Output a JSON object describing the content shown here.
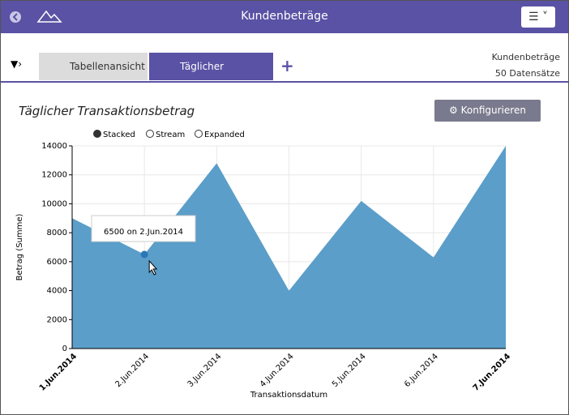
{
  "header": {
    "title": "Kundenbeträge"
  },
  "tabs": [
    "Tabellenansicht",
    "Täglicher Transakt..."
  ],
  "info": {
    "source": "Kundenbeträge",
    "records": "50 Datensätze"
  },
  "panel": {
    "title": "Täglicher Transaktionsbetrag",
    "button": "Konfigurieren",
    "modes": [
      "Stacked",
      "Stream",
      "Expanded"
    ]
  },
  "chart_data": {
    "type": "area",
    "categories": [
      "1.Jun.2014",
      "2.Jun.2014",
      "3.Jun.2014",
      "4.Jun.2014",
      "5.Jun.2014",
      "6.Jun.2014",
      "7.Jun.2014"
    ],
    "values": [
      9000,
      6500,
      12800,
      4000,
      10200,
      6300,
      14000
    ],
    "color": "#5b9ec9",
    "ylim": [
      0,
      14000
    ],
    "yticks": [
      0,
      2000,
      4000,
      6000,
      8000,
      10000,
      12000,
      14000
    ],
    "grid": true,
    "ylabel": "Betrag (Summe)",
    "xlabel": "Transaktionsdatum",
    "tooltip": "6500 on 2.Jun.2014"
  }
}
